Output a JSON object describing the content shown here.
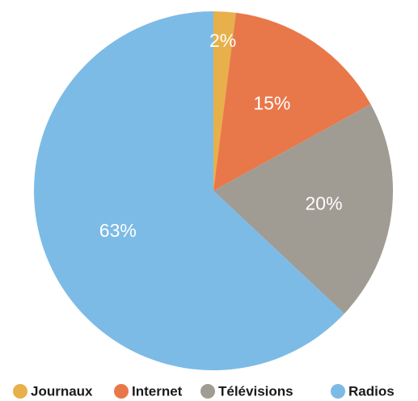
{
  "chart_data": {
    "type": "pie",
    "title": "",
    "series": [
      {
        "name": "Journaux",
        "value": 2,
        "label": "2%",
        "color": "#e8b04a"
      },
      {
        "name": "Internet",
        "value": 15,
        "label": "15%",
        "color": "#e8784a"
      },
      {
        "name": "Télévisions",
        "value": 20,
        "label": "20%",
        "color": "#a09c94"
      },
      {
        "name": "Radios",
        "value": 63,
        "label": "63%",
        "color": "#7cbbe6"
      }
    ],
    "start_angle": "12 o'clock",
    "direction": "clockwise",
    "legend_placement": "bottom"
  }
}
